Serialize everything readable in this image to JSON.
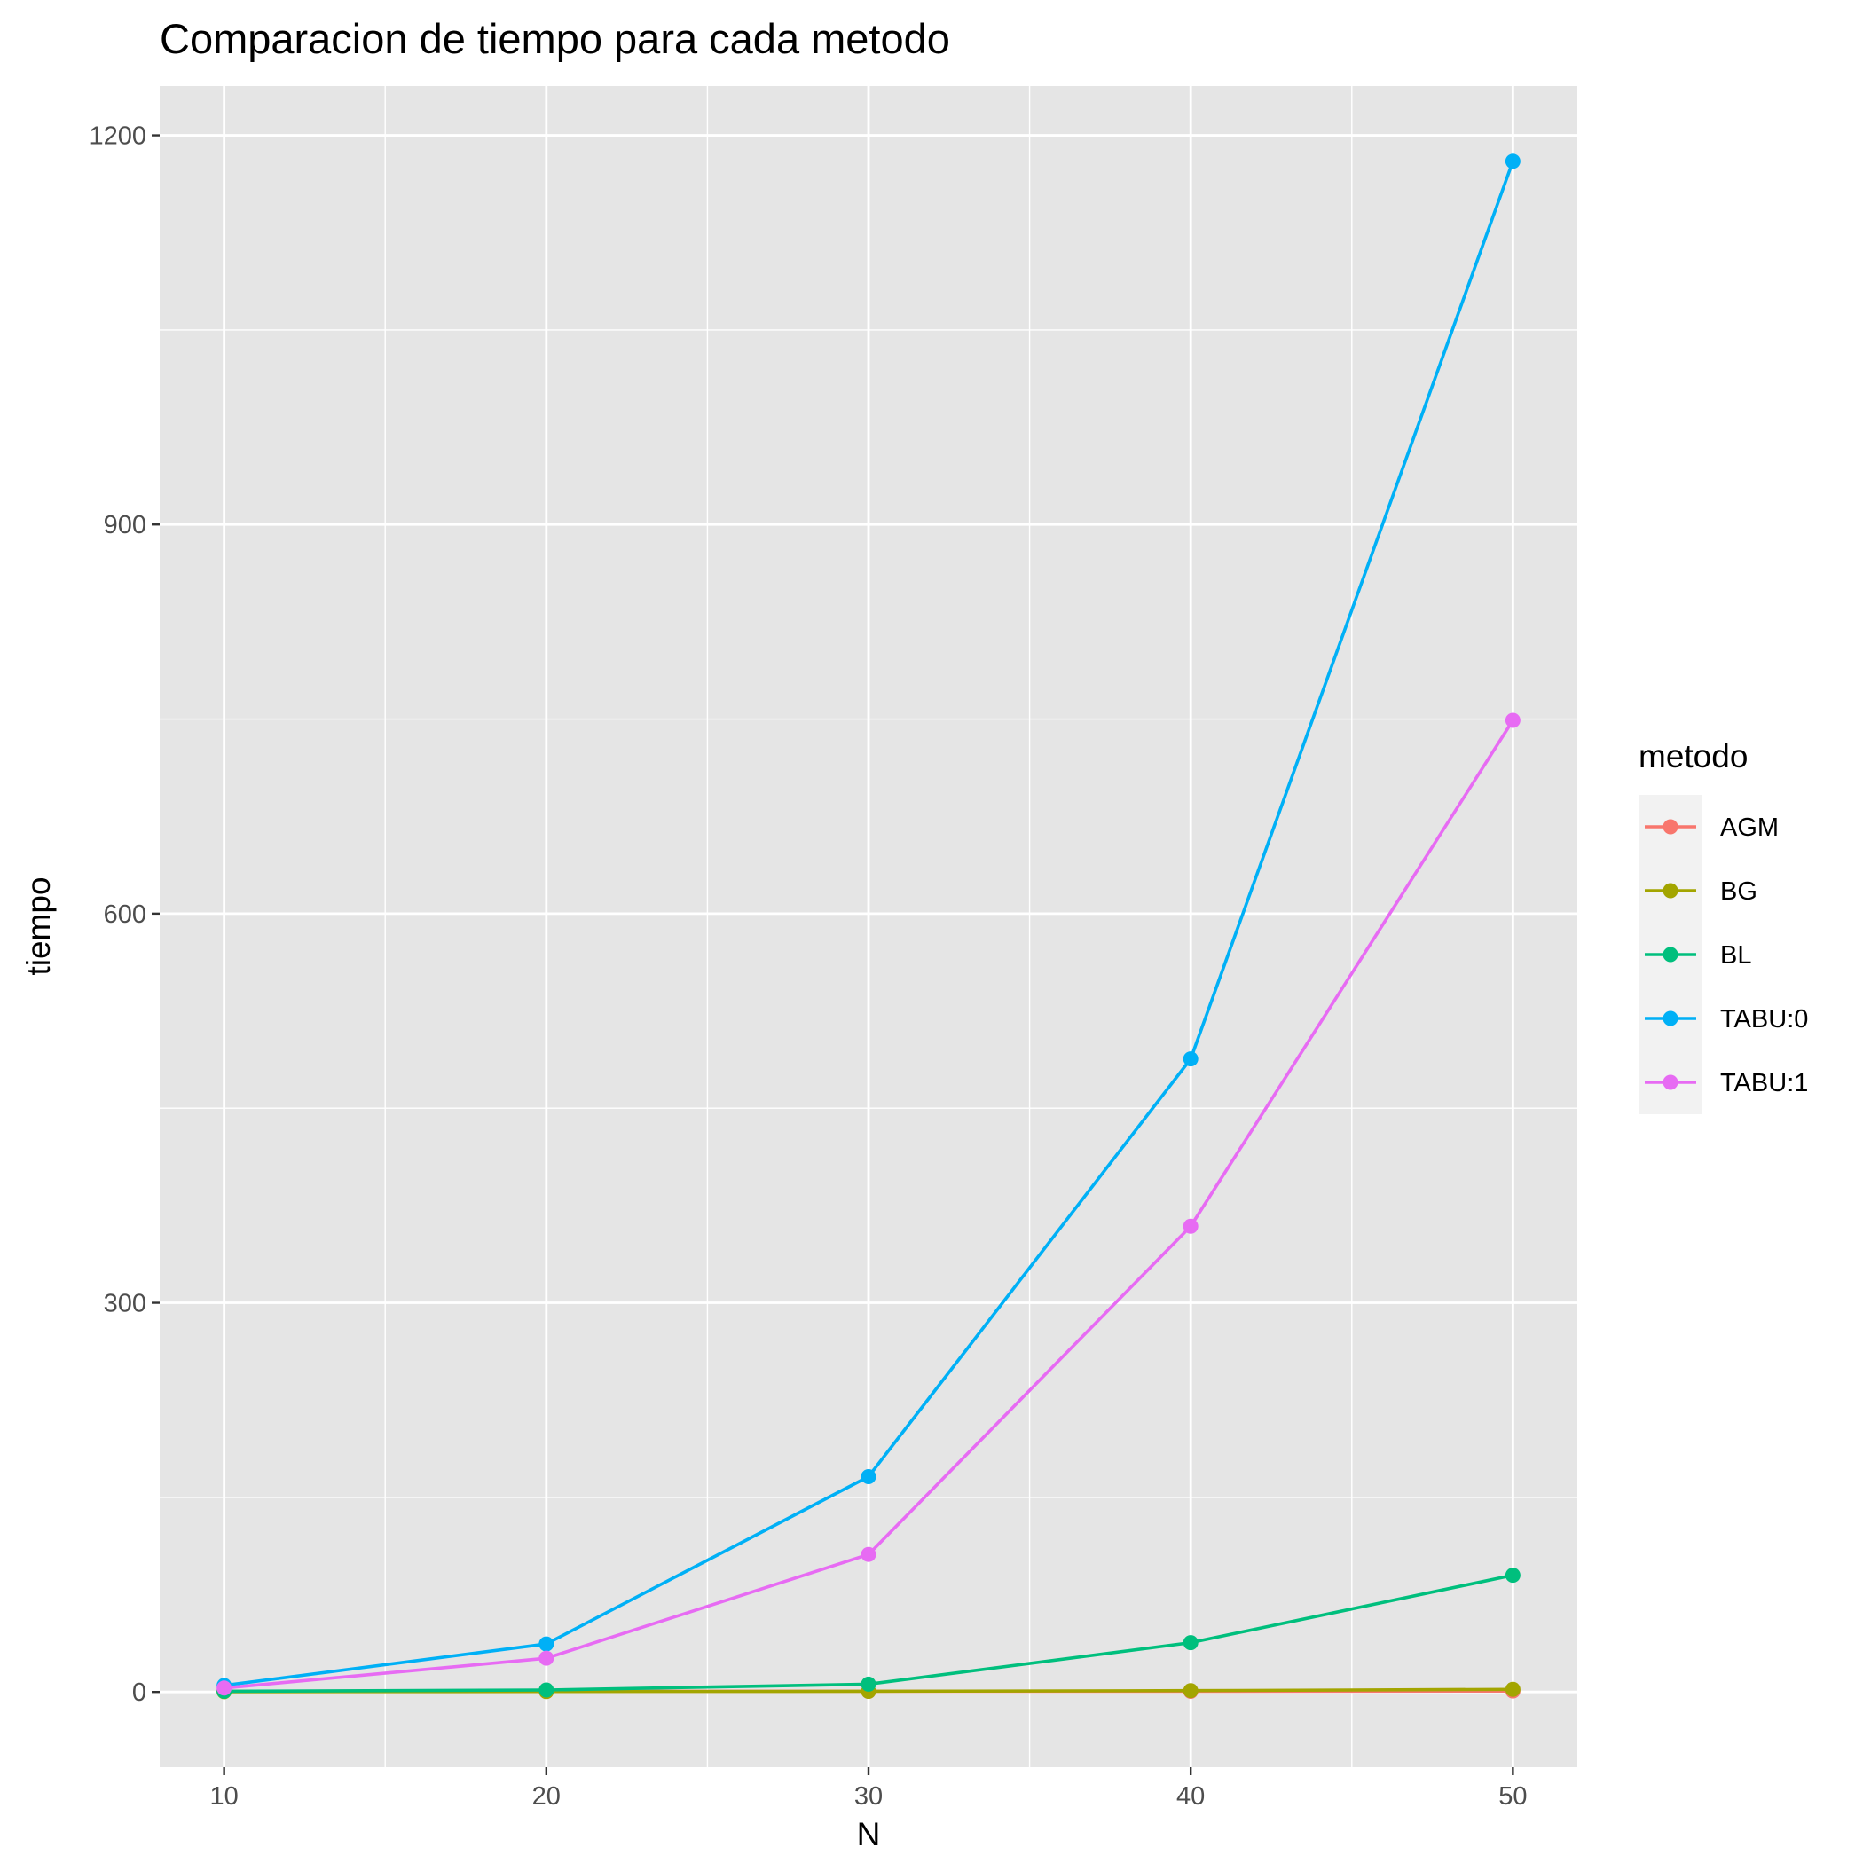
{
  "chart_data": {
    "type": "line",
    "title": "Comparacion de tiempo para cada metodo",
    "xlabel": "N",
    "ylabel": "tiempo",
    "x": [
      10,
      20,
      30,
      40,
      50
    ],
    "xticks": [
      10,
      20,
      30,
      40,
      50
    ],
    "yticks": [
      0,
      300,
      600,
      900,
      1200
    ],
    "xlim": [
      8,
      52
    ],
    "ylim": [
      -58,
      1238
    ],
    "grid": true,
    "legend_title": "metodo",
    "legend_position": "right",
    "series": [
      {
        "name": "AGM",
        "color": "#F8766D",
        "values": [
          0.5,
          0.5,
          0.5,
          0.5,
          0.7
        ]
      },
      {
        "name": "BG",
        "color": "#A3A500",
        "values": [
          0.2,
          0.3,
          0.5,
          1.0,
          2.0
        ]
      },
      {
        "name": "BL",
        "color": "#00BF7D",
        "values": [
          0.5,
          1.5,
          6.0,
          38.0,
          90.0
        ]
      },
      {
        "name": "TABU:0",
        "color": "#00B0F6",
        "values": [
          5.0,
          37.0,
          166.0,
          488.0,
          1180.0
        ]
      },
      {
        "name": "TABU:1",
        "color": "#E76BF3",
        "values": [
          3.0,
          26.0,
          106.0,
          359.0,
          749.0
        ]
      }
    ]
  }
}
